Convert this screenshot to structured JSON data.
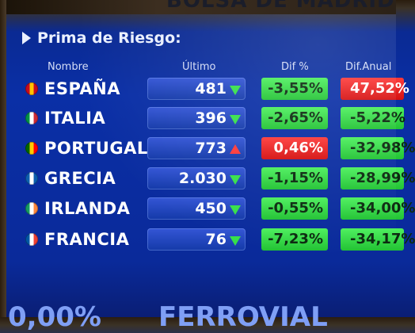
{
  "top_banner": "BOLSA DE MADRID",
  "section_title": "Prima de Riesgo:",
  "headers": {
    "name": "Nombre",
    "last": "Último",
    "dif": "Dif %",
    "dif_annual": "Dif.Anual"
  },
  "rows": [
    {
      "country": "ESPAÑA",
      "last": "481",
      "trend": "down",
      "dif": "-3,55%",
      "dif_color": "green",
      "dif_annual": "47,52%",
      "dif_annual_color": "red",
      "flag_colors": [
        "#c60b1e",
        "#ffc400",
        "#c60b1e"
      ]
    },
    {
      "country": "ITALIA",
      "last": "396",
      "trend": "down",
      "dif": "-2,65%",
      "dif_color": "green",
      "dif_annual": "-5,22%",
      "dif_annual_color": "green",
      "flag_colors": [
        "#009246",
        "#ffffff",
        "#ce2b37"
      ]
    },
    {
      "country": "PORTUGAL",
      "last": "773",
      "trend": "up",
      "dif": "0,46%",
      "dif_color": "red",
      "dif_annual": "-32,98%",
      "dif_annual_color": "green",
      "flag_colors": [
        "#006600",
        "#ffcc00",
        "#ff0000"
      ]
    },
    {
      "country": "GRECIA",
      "last": "2.030",
      "trend": "down",
      "dif": "-1,15%",
      "dif_color": "green",
      "dif_annual": "-28,99%",
      "dif_annual_color": "green",
      "flag_colors": [
        "#0d5eaf",
        "#ffffff",
        "#0d5eaf"
      ]
    },
    {
      "country": "IRLANDA",
      "last": "450",
      "trend": "down",
      "dif": "-0,55%",
      "dif_color": "green",
      "dif_annual": "-34,00%",
      "dif_annual_color": "green",
      "flag_colors": [
        "#169b62",
        "#ffffff",
        "#ff883e"
      ]
    },
    {
      "country": "FRANCIA",
      "last": "76",
      "trend": "down",
      "dif": "-7,23%",
      "dif_color": "green",
      "dif_annual": "-34,17%",
      "dif_annual_color": "green",
      "flag_colors": [
        "#0055a4",
        "#ffffff",
        "#ef4135"
      ]
    }
  ],
  "bottom_left": "0,00%",
  "bottom_right": "FERROVIAL"
}
